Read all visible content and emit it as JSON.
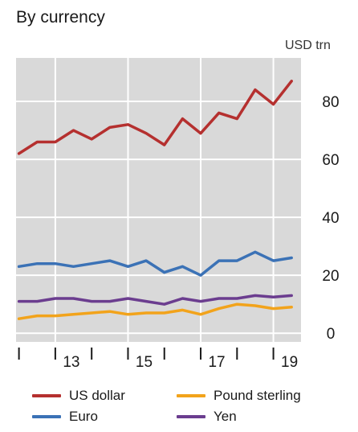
{
  "chart_data": {
    "type": "line",
    "title": "By currency",
    "unit_label": "USD trn",
    "xlabel": "",
    "ylabel": "",
    "x": [
      12.0,
      12.5,
      13.0,
      13.5,
      14.0,
      14.5,
      15.0,
      15.5,
      16.0,
      16.5,
      17.0,
      17.5,
      18.0,
      18.5,
      19.0,
      19.5
    ],
    "x_ticks": [
      "13",
      "15",
      "17",
      "19"
    ],
    "y_ticks": [
      "0",
      "20",
      "40",
      "60",
      "80"
    ],
    "ylim": [
      -3,
      95
    ],
    "grid": true,
    "legend_position": "bottom",
    "series": [
      {
        "name": "US dollar",
        "color": "#b5302f",
        "values": [
          62,
          66,
          66,
          70,
          67,
          71,
          72,
          69,
          65,
          74,
          69,
          76,
          74,
          84,
          79,
          87
        ]
      },
      {
        "name": "Euro",
        "color": "#3b72b6",
        "values": [
          23,
          24,
          24,
          23,
          24,
          25,
          23,
          25,
          21,
          23,
          20,
          25,
          25,
          28,
          25,
          26
        ]
      },
      {
        "name": "Pound sterling",
        "color": "#f2a31b",
        "values": [
          5,
          6,
          6,
          6.5,
          7,
          7.5,
          6.5,
          7,
          7,
          8,
          6.5,
          8.5,
          10,
          9.5,
          8.5,
          9
        ]
      },
      {
        "name": "Yen",
        "color": "#6b3d8f",
        "values": [
          11,
          11,
          12,
          12,
          11,
          11,
          12,
          11,
          10,
          12,
          11,
          12,
          12,
          13,
          12.5,
          13
        ]
      }
    ]
  }
}
